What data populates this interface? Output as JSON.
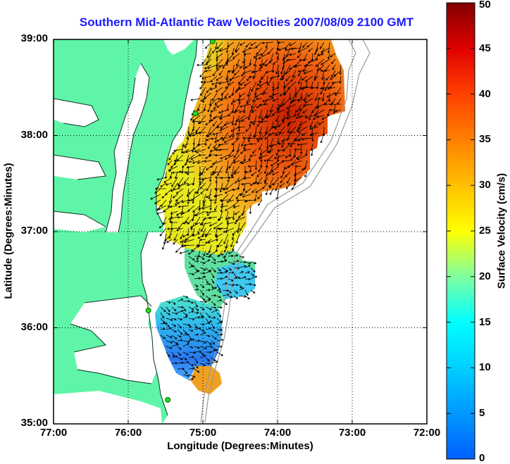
{
  "title": "Southern Mid-Atlantic Raw Velocities 2007/08/09 2100 GMT",
  "x_axis": {
    "label": "Longitude (Degrees:Minutes)",
    "range": [
      -77,
      -72
    ],
    "ticks": [
      {
        "value": -77,
        "label": "77:00"
      },
      {
        "value": -76,
        "label": "76:00"
      },
      {
        "value": -75,
        "label": "75:00"
      },
      {
        "value": -74,
        "label": "74:00"
      },
      {
        "value": -73,
        "label": "73:00"
      },
      {
        "value": -72,
        "label": "72:00"
      }
    ]
  },
  "y_axis": {
    "label": "Latitude (Degrees:Minutes)",
    "range": [
      35,
      39
    ],
    "ticks": [
      {
        "value": 39,
        "label": "39:00"
      },
      {
        "value": 38,
        "label": "38:00"
      },
      {
        "value": 37,
        "label": "37:00"
      },
      {
        "value": 36,
        "label": "36:00"
      },
      {
        "value": 35,
        "label": "35:00"
      }
    ]
  },
  "colorbar": {
    "label": "Surface Velocity (cm/s)",
    "range": [
      0,
      50
    ],
    "ticks": [
      "50",
      "45",
      "40",
      "35",
      "30",
      "25",
      "20",
      "15",
      "10",
      "5",
      "0"
    ],
    "colors": [
      "#0000ff",
      "#00bfff",
      "#00ffff",
      "#7fff7f",
      "#ffff00",
      "#ffa500",
      "#ff4500",
      "#ff0000",
      "#8b0000"
    ]
  },
  "land_color": "#5ff5a8",
  "grid": "dotted",
  "stations": [
    {
      "lon": -74.87,
      "lat": 38.98
    },
    {
      "lon": -75.1,
      "lat": 38.23
    },
    {
      "lon": -75.73,
      "lat": 36.18
    },
    {
      "lon": -75.47,
      "lat": 35.25
    }
  ]
}
